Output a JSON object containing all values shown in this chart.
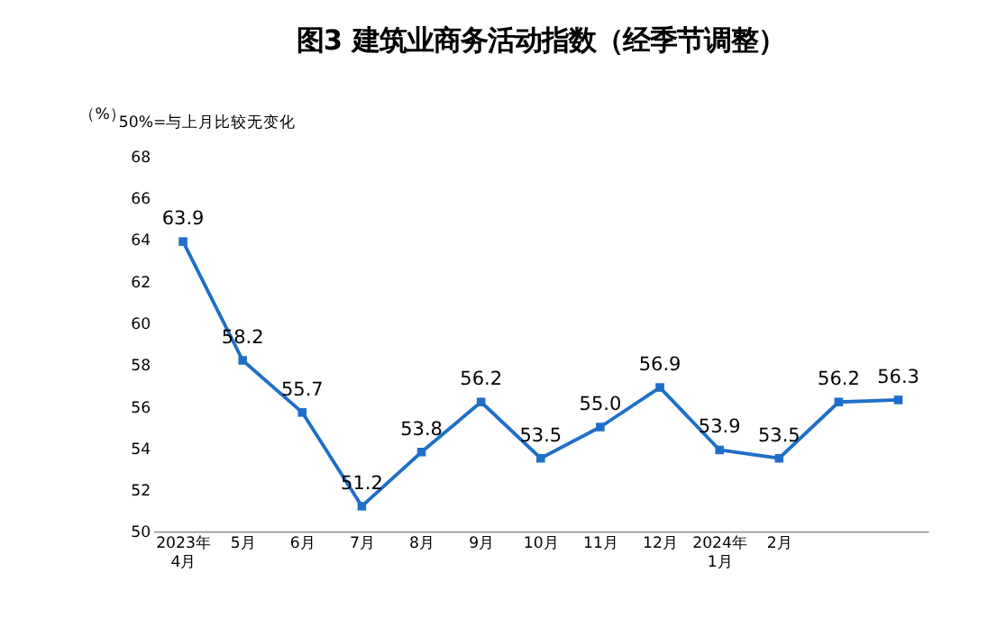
{
  "chart_data": {
    "type": "line",
    "title": "图3  建筑业商务活动指数（经季节调整）",
    "ylabel": "（%）",
    "annotations": [
      "50%=与上月比较无变化"
    ],
    "categories": [
      "2023年\n4月",
      "5月",
      "6月",
      "7月",
      "8月",
      "9月",
      "10月",
      "11月",
      "12月",
      "2024年\n1月",
      "2月",
      null,
      null
    ],
    "series": [
      {
        "color": "#1f6fc8",
        "values": [
          63.9,
          58.2,
          55.7,
          51.2,
          53.8,
          56.2,
          53.5,
          55.0,
          56.9,
          53.9,
          53.5,
          56.2,
          56.3
        ]
      }
    ],
    "value_labels": [
      "63.9",
      "58.2",
      "55.7",
      "51.2",
      "53.8",
      "56.2",
      "53.5",
      "55.0",
      "56.9",
      "53.9",
      "53.5",
      "56.2",
      "56.3"
    ],
    "ylim": [
      50,
      68
    ],
    "yticks": [
      50,
      52,
      54,
      56,
      58,
      60,
      62,
      64,
      66,
      68
    ],
    "marker": "square",
    "line_style": "solid",
    "grid": false
  }
}
